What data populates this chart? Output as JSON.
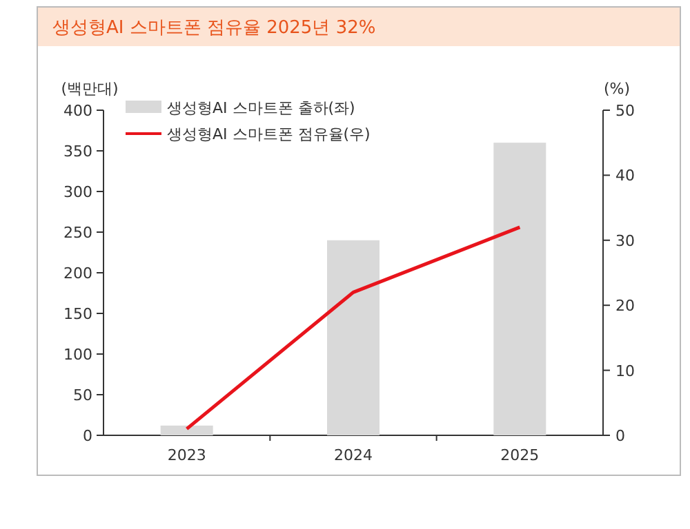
{
  "chart_data": {
    "type": "bar",
    "title": "생성형AI 스마트폰 점유율 2025년 32%",
    "ylabel": "(백만대)",
    "y2label": "(%)",
    "categories": [
      "2023",
      "2024",
      "2025"
    ],
    "series": [
      {
        "name": "생성형AI 스마트폰 출하(좌)",
        "color": "#d9d9d9",
        "values": [
          12,
          240,
          360
        ]
      },
      {
        "name": "생성형AI 스마트폰 점유율(우)",
        "type": "line",
        "axis": "y2",
        "color": "#e8141c",
        "values": [
          1,
          22,
          32
        ]
      }
    ],
    "ylim": [
      0,
      400
    ],
    "yticks": [
      0,
      50,
      100,
      150,
      200,
      250,
      300,
      350,
      400
    ],
    "y2lim": [
      0,
      50
    ],
    "y2ticks": [
      0,
      10,
      20,
      30,
      40,
      50
    ],
    "legend": "top left",
    "grid": false
  }
}
